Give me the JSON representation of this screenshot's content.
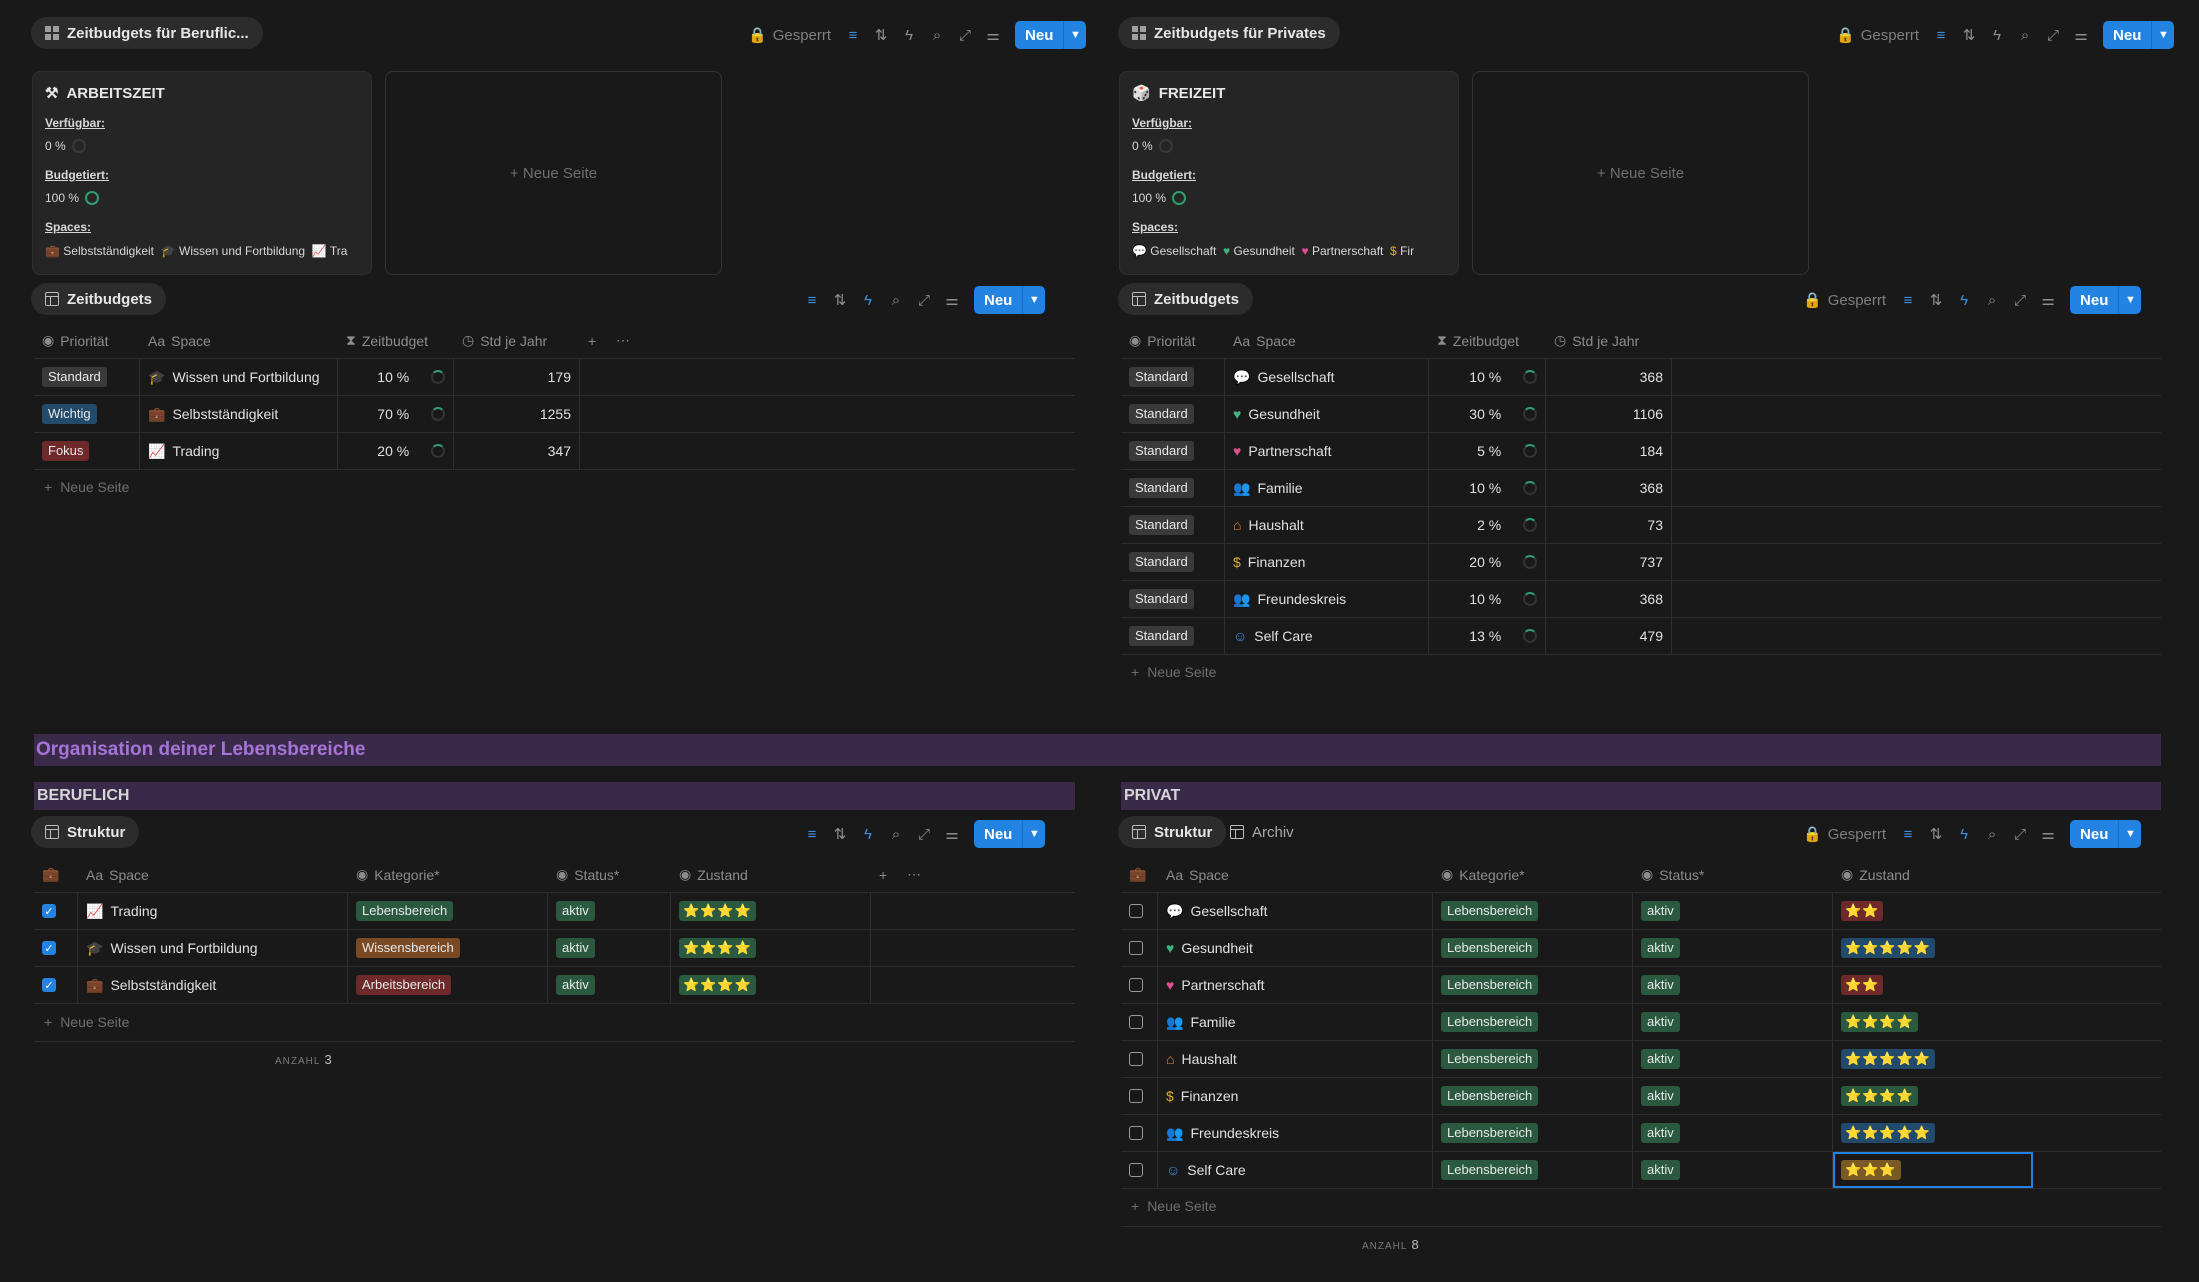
{
  "left_panel": {
    "gallery_title": "Zeitbudgets für Beruflic...",
    "locked_label": "Gesperrt",
    "new_label": "Neu",
    "card": {
      "title": "ARBEITSZEIT",
      "available_label": "Verfügbar:",
      "available_value": "0 %",
      "budgeted_label": "Budgetiert:",
      "budgeted_value": "100 %",
      "spaces_label": "Spaces:",
      "spaces": [
        "Selbstständigkeit",
        "Wissen und Fortbildung",
        "Tra"
      ]
    },
    "new_page_label": "Neue Seite",
    "table_title": "Zeitbudgets",
    "columns": [
      "Priorität",
      "Space",
      "Zeitbudget",
      "Std je Jahr"
    ],
    "rows": [
      {
        "priority": "Standard",
        "space": "Wissen und Fortbildung",
        "budget": "10 %",
        "hours": "179"
      },
      {
        "priority": "Wichtig",
        "space": "Selbstständigkeit",
        "budget": "70 %",
        "hours": "1255"
      },
      {
        "priority": "Fokus",
        "space": "Trading",
        "budget": "20 %",
        "hours": "347"
      }
    ],
    "table_new_page": "Neue Seite"
  },
  "right_panel": {
    "gallery_title": "Zeitbudgets für Privates",
    "locked_label": "Gesperrt",
    "new_label": "Neu",
    "card": {
      "title": "FREIZEIT",
      "available_label": "Verfügbar:",
      "available_value": "0 %",
      "budgeted_label": "Budgetiert:",
      "budgeted_value": "100 %",
      "spaces_label": "Spaces:",
      "spaces": [
        "Gesellschaft",
        "Gesundheit",
        "Partnerschaft",
        "Fir"
      ]
    },
    "new_page_label": "Neue Seite",
    "table_title": "Zeitbudgets",
    "table_locked": "Gesperrt",
    "columns": [
      "Priorität",
      "Space",
      "Zeitbudget",
      "Std je Jahr"
    ],
    "rows": [
      {
        "priority": "Standard",
        "space": "Gesellschaft",
        "budget": "10 %",
        "hours": "368"
      },
      {
        "priority": "Standard",
        "space": "Gesundheit",
        "budget": "30 %",
        "hours": "1106"
      },
      {
        "priority": "Standard",
        "space": "Partnerschaft",
        "budget": "5 %",
        "hours": "184"
      },
      {
        "priority": "Standard",
        "space": "Familie",
        "budget": "10 %",
        "hours": "368"
      },
      {
        "priority": "Standard",
        "space": "Haushalt",
        "budget": "2 %",
        "hours": "73"
      },
      {
        "priority": "Standard",
        "space": "Finanzen",
        "budget": "20 %",
        "hours": "737"
      },
      {
        "priority": "Standard",
        "space": "Freundeskreis",
        "budget": "10 %",
        "hours": "368"
      },
      {
        "priority": "Standard",
        "space": "Self Care",
        "budget": "13 %",
        "hours": "479"
      }
    ],
    "table_new_page": "Neue Seite"
  },
  "banner": "Organisation deiner Lebensbereiche",
  "beruflich": {
    "heading": "BERUFLICH",
    "tab": "Struktur",
    "new_label": "Neu",
    "columns": [
      "Space",
      "Kategorie*",
      "Status*",
      "Zustand"
    ],
    "rows": [
      {
        "checked": true,
        "space": "Trading",
        "category": "Lebensbereich",
        "status": "aktiv",
        "stars": "⭐⭐⭐⭐"
      },
      {
        "checked": true,
        "space": "Wissen und Fortbildung",
        "category": "Wissensbereich",
        "status": "aktiv",
        "stars": "⭐⭐⭐⭐"
      },
      {
        "checked": true,
        "space": "Selbstständigkeit",
        "category": "Arbeitsbereich",
        "status": "aktiv",
        "stars": "⭐⭐⭐⭐"
      }
    ],
    "new_page": "Neue Seite",
    "count_label": "ANZAHL",
    "count_value": "3"
  },
  "privat": {
    "heading": "PRIVAT",
    "tab": "Struktur",
    "tab2": "Archiv",
    "locked_label": "Gesperrt",
    "new_label": "Neu",
    "columns": [
      "Space",
      "Kategorie*",
      "Status*",
      "Zustand"
    ],
    "rows": [
      {
        "space": "Gesellschaft",
        "category": "Lebensbereich",
        "status": "aktiv",
        "stars": "⭐⭐"
      },
      {
        "space": "Gesundheit",
        "category": "Lebensbereich",
        "status": "aktiv",
        "stars": "⭐⭐⭐⭐⭐"
      },
      {
        "space": "Partnerschaft",
        "category": "Lebensbereich",
        "status": "aktiv",
        "stars": "⭐⭐"
      },
      {
        "space": "Familie",
        "category": "Lebensbereich",
        "status": "aktiv",
        "stars": "⭐⭐⭐⭐"
      },
      {
        "space": "Haushalt",
        "category": "Lebensbereich",
        "status": "aktiv",
        "stars": "⭐⭐⭐⭐⭐"
      },
      {
        "space": "Finanzen",
        "category": "Lebensbereich",
        "status": "aktiv",
        "stars": "⭐⭐⭐⭐"
      },
      {
        "space": "Freundeskreis",
        "category": "Lebensbereich",
        "status": "aktiv",
        "stars": "⭐⭐⭐⭐⭐"
      },
      {
        "space": "Self Care",
        "category": "Lebensbereich",
        "status": "aktiv",
        "stars": "⭐⭐⭐"
      }
    ],
    "new_page": "Neue Seite",
    "count_label": "ANZAHL",
    "count_value": "8"
  }
}
